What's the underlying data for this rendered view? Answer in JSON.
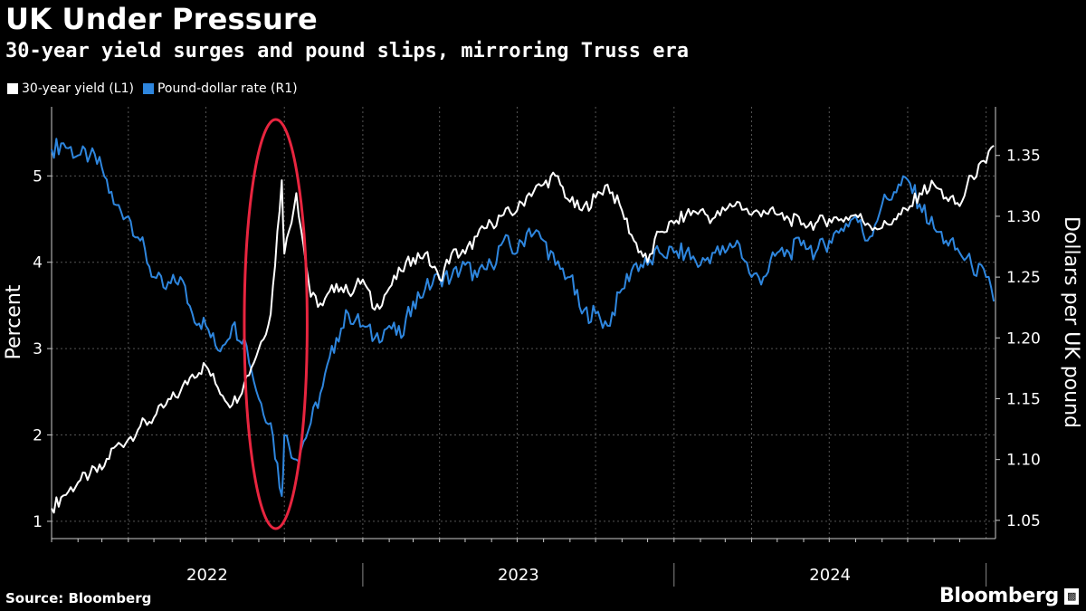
{
  "title": "UK Under Pressure",
  "subtitle": "30-year yield surges and pound slips, mirroring Truss era",
  "source": "Source: Bloomberg",
  "brand": "Bloomberg",
  "brand_icon": "bloomberg-terminal-icon",
  "colors": {
    "background": "#000000",
    "yield": "#ffffff",
    "pound": "#2e86de",
    "highlight": "#e8253f",
    "grid": "#555555"
  },
  "chart_data": {
    "type": "line",
    "title": "UK Under Pressure",
    "legend": "top-left",
    "grid": true,
    "x": [
      "2022-01-01",
      "2022-01-15",
      "2022-02-01",
      "2022-02-15",
      "2022-03-01",
      "2022-03-15",
      "2022-04-01",
      "2022-04-15",
      "2022-05-01",
      "2022-05-15",
      "2022-06-01",
      "2022-06-15",
      "2022-07-01",
      "2022-07-15",
      "2022-08-01",
      "2022-08-15",
      "2022-09-01",
      "2022-09-15",
      "2022-09-28",
      "2022-10-01",
      "2022-10-15",
      "2022-11-01",
      "2022-11-15",
      "2022-12-01",
      "2022-12-15",
      "2023-01-01",
      "2023-01-15",
      "2023-02-01",
      "2023-02-15",
      "2023-03-01",
      "2023-03-15",
      "2023-04-01",
      "2023-04-15",
      "2023-05-01",
      "2023-05-15",
      "2023-06-01",
      "2023-06-15",
      "2023-07-01",
      "2023-07-15",
      "2023-08-01",
      "2023-08-15",
      "2023-09-01",
      "2023-09-15",
      "2023-10-01",
      "2023-10-15",
      "2023-11-01",
      "2023-11-15",
      "2023-12-01",
      "2023-12-15",
      "2024-01-01",
      "2024-01-15",
      "2024-02-01",
      "2024-02-15",
      "2024-03-01",
      "2024-03-15",
      "2024-04-01",
      "2024-04-15",
      "2024-05-01",
      "2024-05-15",
      "2024-06-01",
      "2024-06-15",
      "2024-07-01",
      "2024-07-15",
      "2024-08-01",
      "2024-08-15",
      "2024-09-01",
      "2024-09-15",
      "2024-10-01",
      "2024-10-15",
      "2024-11-01",
      "2024-11-15",
      "2024-12-01",
      "2024-12-15",
      "2025-01-01",
      "2025-01-10"
    ],
    "series": [
      {
        "name": "30-year yield (L1)",
        "axis": "left",
        "unit": "Percent",
        "values": [
          1.15,
          1.3,
          1.45,
          1.55,
          1.6,
          1.85,
          1.95,
          2.1,
          2.2,
          2.35,
          2.5,
          2.7,
          2.8,
          2.55,
          2.35,
          2.6,
          3.0,
          3.4,
          4.95,
          4.1,
          4.8,
          3.6,
          3.5,
          3.75,
          3.65,
          3.8,
          3.45,
          3.7,
          3.9,
          4.05,
          4.1,
          3.8,
          4.1,
          4.1,
          4.3,
          4.45,
          4.55,
          4.6,
          4.8,
          4.9,
          5.0,
          4.7,
          4.6,
          4.75,
          4.9,
          4.6,
          4.25,
          4.0,
          4.35,
          4.45,
          4.55,
          4.6,
          4.5,
          4.6,
          4.7,
          4.55,
          4.6,
          4.55,
          4.5,
          4.45,
          4.45,
          4.5,
          4.5,
          4.55,
          4.45,
          4.4,
          4.5,
          4.6,
          4.8,
          4.9,
          4.75,
          4.65,
          5.0,
          5.15,
          5.35
        ]
      },
      {
        "name": "Pound-dollar rate (R1)",
        "axis": "right",
        "unit": "Dollars per UK pound",
        "values": [
          1.355,
          1.36,
          1.35,
          1.35,
          1.34,
          1.31,
          1.3,
          1.28,
          1.25,
          1.24,
          1.25,
          1.22,
          1.21,
          1.19,
          1.21,
          1.2,
          1.15,
          1.13,
          1.07,
          1.12,
          1.1,
          1.13,
          1.16,
          1.2,
          1.22,
          1.21,
          1.2,
          1.21,
          1.2,
          1.23,
          1.24,
          1.25,
          1.25,
          1.26,
          1.25,
          1.26,
          1.28,
          1.27,
          1.29,
          1.28,
          1.26,
          1.25,
          1.22,
          1.22,
          1.21,
          1.24,
          1.26,
          1.26,
          1.27,
          1.27,
          1.27,
          1.26,
          1.27,
          1.27,
          1.28,
          1.25,
          1.25,
          1.27,
          1.27,
          1.28,
          1.27,
          1.28,
          1.29,
          1.3,
          1.28,
          1.31,
          1.32,
          1.33,
          1.31,
          1.29,
          1.28,
          1.27,
          1.26,
          1.25,
          1.23
        ]
      }
    ],
    "y_left": {
      "label": "Percent",
      "ticks": [
        1,
        2,
        3,
        4,
        5
      ],
      "ylim": [
        0.8,
        5.8
      ]
    },
    "y_right": {
      "label": "Dollars per UK pound",
      "ticks": [
        "1.05",
        "1.10",
        "1.15",
        "1.20",
        "1.25",
        "1.30",
        "1.35"
      ],
      "ylim": [
        1.035,
        1.39
      ]
    },
    "x_labels": [
      "2022",
      "2023",
      "2024"
    ],
    "annotations": [
      {
        "type": "ellipse",
        "label": "Truss era",
        "x_range": [
          "2022-08-15",
          "2022-11-01"
        ]
      }
    ]
  }
}
